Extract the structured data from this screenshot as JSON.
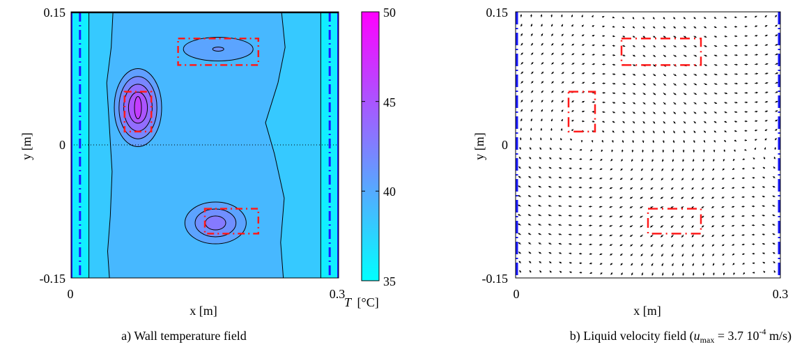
{
  "chart_data": [
    {
      "type": "heatmap",
      "caption": "a) Wall temperature field",
      "xlabel": "x [m]",
      "ylabel": "y [m]",
      "xlim": [
        0,
        0.3
      ],
      "ylim": [
        -0.15,
        0.15
      ],
      "x_ticks": [
        "0",
        "0.3"
      ],
      "y_ticks": [
        "0.15",
        "0",
        "-0.15"
      ],
      "colorbar": {
        "label_italic": "T",
        "label_unit": "[°C]",
        "range": [
          35,
          50
        ],
        "ticks": [
          "50",
          "45",
          "40",
          "35"
        ],
        "colors": [
          "#00ffff",
          "#ff00ff"
        ]
      },
      "background_temperature": 38.2,
      "edge_strip_temperature": 36.0,
      "hot_spots": [
        {
          "x": 0.075,
          "y": 0.042,
          "peak_temperature": 46.5
        },
        {
          "x": 0.165,
          "y": 0.108,
          "peak_temperature": 41.5
        },
        {
          "x": 0.162,
          "y": -0.088,
          "peak_temperature": 42.8
        }
      ],
      "heater_zones": [
        {
          "x_range": [
            0.06,
            0.09
          ],
          "y_range": [
            0.015,
            0.06
          ]
        },
        {
          "x_range": [
            0.12,
            0.21
          ],
          "y_range": [
            0.09,
            0.12
          ]
        },
        {
          "x_range": [
            0.15,
            0.21
          ],
          "y_range": [
            -0.1,
            -0.072
          ]
        }
      ],
      "side_walls_x": [
        0.01,
        0.29
      ],
      "dotted_line_y": 0
    },
    {
      "type": "quiver",
      "caption_prefix": "b) Liquid velocity field (",
      "caption_u": "u",
      "caption_max": "max",
      "caption_mid": " = 3.7 10",
      "caption_exp": "-4",
      "caption_suffix": " m/s)",
      "u_max": "3.7 10-4 m/s",
      "xlabel": "x [m]",
      "ylabel": "y [m]",
      "xlim": [
        0,
        0.3
      ],
      "ylim": [
        -0.15,
        0.15
      ],
      "x_ticks": [
        "0",
        "0.3"
      ],
      "y_ticks": [
        "0.15",
        "0",
        "-0.15"
      ],
      "heater_zones": [
        {
          "x_range": [
            0.06,
            0.09
          ],
          "y_range": [
            0.015,
            0.06
          ]
        },
        {
          "x_range": [
            0.12,
            0.21
          ],
          "y_range": [
            0.09,
            0.12
          ]
        },
        {
          "x_range": [
            0.15,
            0.21
          ],
          "y_range": [
            -0.1,
            -0.072
          ]
        }
      ],
      "side_walls_x": [
        0.0,
        0.3
      ]
    }
  ]
}
